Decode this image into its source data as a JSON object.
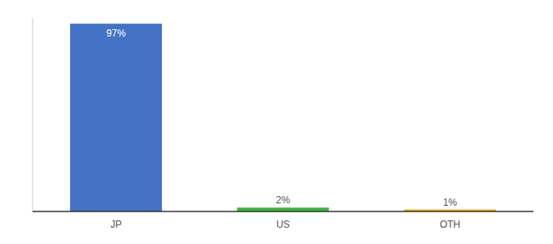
{
  "chart_data": {
    "type": "bar",
    "categories": [
      "JP",
      "US",
      "OTH"
    ],
    "values": [
      97,
      2,
      1
    ],
    "value_labels": [
      "97%",
      "2%",
      "1%"
    ],
    "colors": [
      "#4472c4",
      "#3db53d",
      "#f0a500"
    ],
    "ylim": [
      0,
      100
    ],
    "data_labels": true,
    "tick_labels": "x"
  }
}
